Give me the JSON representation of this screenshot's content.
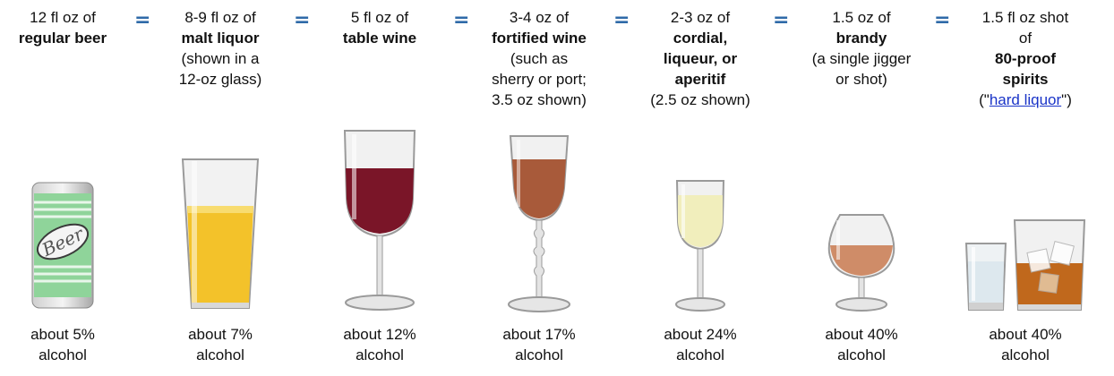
{
  "drinks": [
    {
      "line1": "12 fl oz of",
      "bold": [
        "regular beer"
      ],
      "note": [],
      "image": "beer-can",
      "footer": [
        "about 5%",
        "alcohol"
      ]
    },
    {
      "line1": "8-9 fl oz of",
      "bold": [
        "malt liquor"
      ],
      "note": [
        "(shown in a",
        "12-oz glass)"
      ],
      "image": "pint-glass",
      "footer": [
        "about 7%",
        "alcohol"
      ]
    },
    {
      "line1": "5 fl oz of",
      "bold": [
        "table wine"
      ],
      "note": [],
      "image": "wine-glass",
      "footer": [
        "about 12%",
        "alcohol"
      ]
    },
    {
      "line1": "3-4 oz of",
      "bold": [
        "fortified wine"
      ],
      "note": [
        "(such as",
        "sherry or port;",
        "3.5 oz shown)"
      ],
      "image": "port-glass",
      "footer": [
        "about 17%",
        "alcohol"
      ]
    },
    {
      "line1": "2-3 oz of",
      "bold": [
        "cordial,",
        "liqueur, or",
        "aperitif"
      ],
      "note": [
        "(2.5 oz shown)"
      ],
      "image": "cordial-glass",
      "footer": [
        "about 24%",
        "alcohol"
      ]
    },
    {
      "line1": "1.5 oz of",
      "bold": [
        "brandy"
      ],
      "note": [
        "(a single jigger",
        "or shot)"
      ],
      "image": "brandy-snifter",
      "footer": [
        "about 40%",
        "alcohol"
      ]
    },
    {
      "line1": "1.5 fl oz shot",
      "line1b": "of",
      "bold": [
        "80-proof",
        "spirits"
      ],
      "note_pre": "(\"",
      "note_link": "hard liquor",
      "note_post": "\")",
      "image": "shot-and-rocks",
      "footer": [
        "about 40%",
        "alcohol"
      ]
    }
  ],
  "equals": "=",
  "beer_label": "Beer",
  "colors": {
    "equals": "#2f6aa8",
    "link": "#1a34c8",
    "beer_can": "#8fd49a",
    "malt": "#f3c22a",
    "red_wine": "#7a1528",
    "port": "#a85a3a",
    "cordial": "#f1eebc",
    "brandy": "#cf8c68",
    "whiskey": "#c0681c"
  }
}
